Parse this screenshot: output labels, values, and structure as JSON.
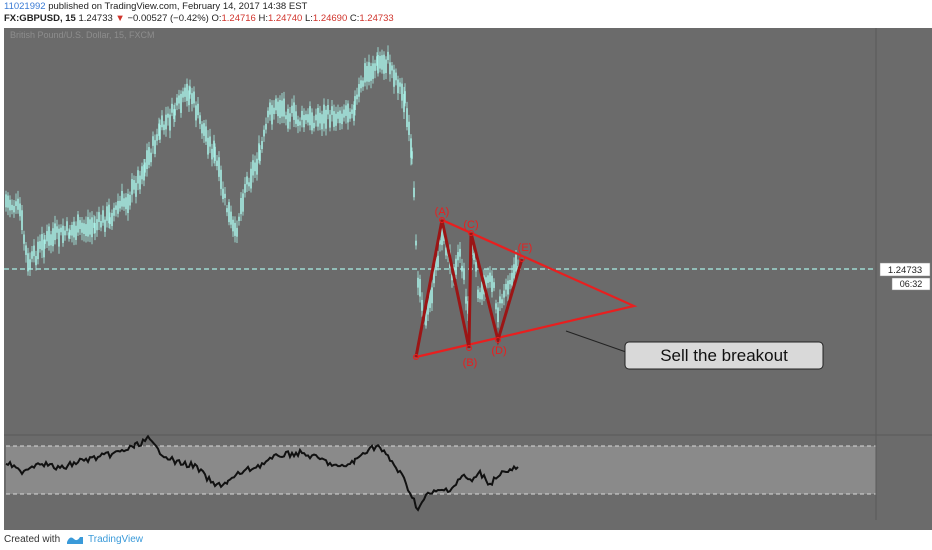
{
  "header": {
    "user": "11021992",
    "published_text": "published on TradingView.com, February 14, 2017 14:38 EST",
    "symbol": "FX:GBPUSD, 15",
    "last_price": "1.24733",
    "change_arrow": "▼",
    "change": "−0.00527 (−0.42%)",
    "o_label": "O:",
    "o_value": "1.24716",
    "h_label": "H:",
    "h_value": "1.24740",
    "l_label": "L:",
    "l_value": "1.24690",
    "c_label": "C:",
    "c_value": "1.24733"
  },
  "chart": {
    "watermark": "British Pound/U.S. Dollar, 15, FXCM",
    "price_label": "1.24733",
    "countdown": "06:32",
    "wave_labels": [
      "(A)",
      "(B)",
      "(C)",
      "(D)",
      "(E)"
    ],
    "callout": "Sell the breakout",
    "colors": {
      "background": "#6b6b6b",
      "candle": "#a8f0e6",
      "pattern_red": "#e81f1f",
      "zigzag_red": "#9b1515",
      "price_line": "#a8f0e6",
      "oscillator_line": "#111111"
    }
  },
  "chart_data": {
    "type": "line",
    "symbol": "GBPUSD",
    "timeframe": "15",
    "last_price": 1.24733,
    "pattern": "triangle",
    "wave_points": [
      {
        "label": "(A)"
      },
      {
        "label": "(B)"
      },
      {
        "label": "(C)"
      },
      {
        "label": "(D)"
      },
      {
        "label": "(E)"
      }
    ],
    "annotation": "Sell the breakout"
  },
  "footer": {
    "created_with": "Created with",
    "brand": "TradingView",
    "logo_icon": "tradingview-logo-icon"
  }
}
